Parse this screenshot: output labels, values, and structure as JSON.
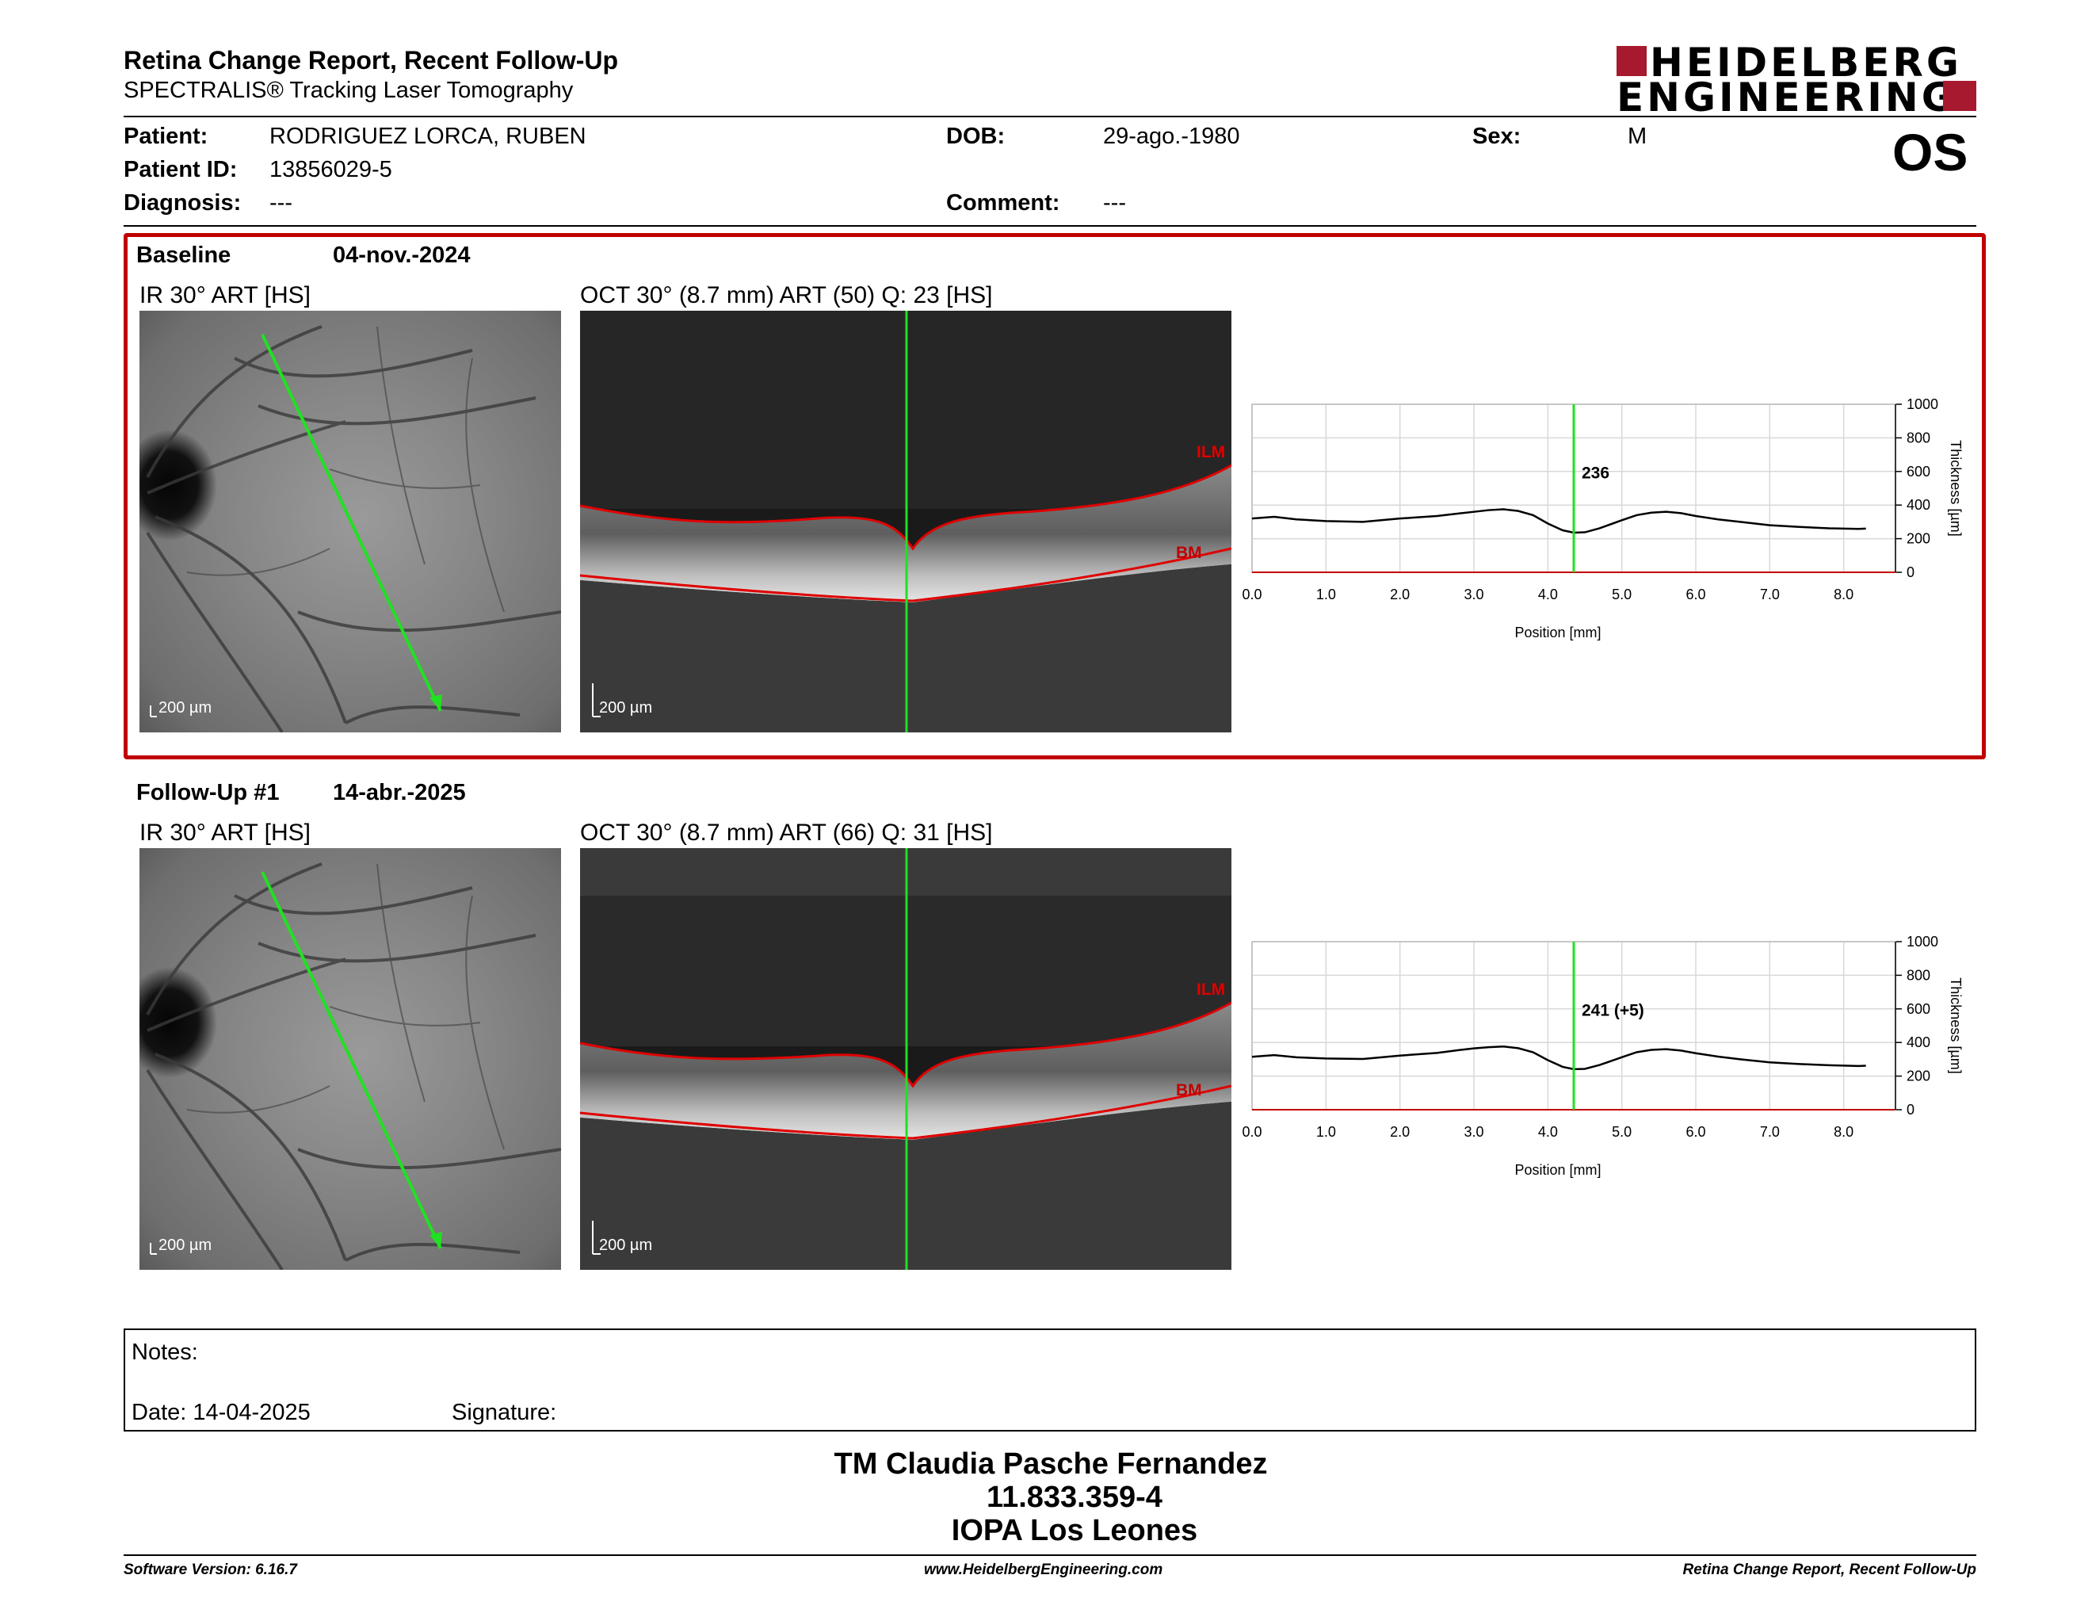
{
  "header": {
    "title": "Retina Change Report, Recent Follow-Up",
    "subtitle": "SPECTRALIS® Tracking Laser Tomography",
    "logo_line1": "HEIDELBERG",
    "logo_line2": "ENGINEERING",
    "brand_color": "#a6192e"
  },
  "patient": {
    "patient_label": "Patient:",
    "patient_value": "RODRIGUEZ LORCA, RUBEN",
    "id_label": "Patient ID:",
    "id_value": "13856029-5",
    "diagnosis_label": "Diagnosis:",
    "diagnosis_value": "---",
    "dob_label": "DOB:",
    "dob_value": "29-ago.-1980",
    "comment_label": "Comment:",
    "comment_value": "---",
    "sex_label": "Sex:",
    "sex_value": "M",
    "eye": "OS"
  },
  "baseline": {
    "label": "Baseline",
    "date": "04-nov.-2024",
    "ir_title": "IR 30° ART [HS]",
    "oct_title": "OCT 30° (8.7 mm) ART (50) Q: 23 [HS]",
    "ir_scale": "200 µm",
    "oct_scale": "200 µm",
    "ilm_label": "ILM",
    "bm_label": "BM"
  },
  "followup": {
    "label": "Follow-Up #1",
    "date": "14-abr.-2025",
    "ir_title": "IR 30° ART [HS]",
    "oct_title": "OCT 30° (8.7 mm) ART (66) Q: 31 [HS]",
    "ir_scale": "200 µm",
    "oct_scale": "200 µm",
    "ilm_label": "ILM",
    "bm_label": "BM"
  },
  "notes": {
    "notes_label": "Notes:",
    "date_label": "Date: 14-04-2025",
    "signature_label": "Signature:"
  },
  "signatory": {
    "name": "TM Claudia Pasche Fernandez",
    "id": "11.833.359-4",
    "org": "IOPA Los Leones"
  },
  "footer": {
    "left": "Software Version: 6.16.7",
    "center": "www.HeidelbergEngineering.com",
    "right": "Retina Change Report, Recent Follow-Up"
  },
  "chart_data": [
    {
      "type": "line",
      "xlabel": "Position [mm]",
      "ylabel": "Thickness [µm]",
      "xlim": [
        0,
        8.7
      ],
      "ylim": [
        0,
        1000
      ],
      "x_ticks": [
        "0.0",
        "1.0",
        "2.0",
        "3.0",
        "4.0",
        "5.0",
        "6.0",
        "7.0",
        "8.0"
      ],
      "y_ticks": [
        "0",
        "200",
        "400",
        "600",
        "800",
        "1000"
      ],
      "grid": true,
      "marker_x": 4.35,
      "marker_label": "236",
      "x": [
        0.0,
        0.3,
        0.6,
        1.0,
        1.5,
        2.0,
        2.5,
        2.8,
        3.0,
        3.2,
        3.4,
        3.6,
        3.8,
        4.0,
        4.2,
        4.35,
        4.5,
        4.7,
        5.0,
        5.2,
        5.4,
        5.6,
        5.8,
        6.0,
        6.3,
        6.6,
        7.0,
        7.4,
        7.8,
        8.2,
        8.3
      ],
      "y": [
        320,
        330,
        315,
        305,
        300,
        320,
        335,
        350,
        360,
        370,
        375,
        365,
        340,
        290,
        250,
        236,
        238,
        262,
        310,
        340,
        355,
        360,
        352,
        335,
        315,
        300,
        280,
        270,
        262,
        258,
        260
      ]
    },
    {
      "type": "line",
      "xlabel": "Position [mm]",
      "ylabel": "Thickness [µm]",
      "xlim": [
        0,
        8.7
      ],
      "ylim": [
        0,
        1000
      ],
      "x_ticks": [
        "0.0",
        "1.0",
        "2.0",
        "3.0",
        "4.0",
        "5.0",
        "6.0",
        "7.0",
        "8.0"
      ],
      "y_ticks": [
        "0",
        "200",
        "400",
        "600",
        "800",
        "1000"
      ],
      "grid": true,
      "marker_x": 4.35,
      "marker_label": "241 (+5)",
      "x": [
        0.0,
        0.3,
        0.6,
        1.0,
        1.5,
        2.0,
        2.5,
        2.8,
        3.0,
        3.2,
        3.4,
        3.6,
        3.8,
        4.0,
        4.2,
        4.35,
        4.5,
        4.7,
        5.0,
        5.2,
        5.4,
        5.6,
        5.8,
        6.0,
        6.3,
        6.6,
        7.0,
        7.4,
        7.8,
        8.2,
        8.3
      ],
      "y": [
        315,
        325,
        312,
        305,
        302,
        322,
        338,
        355,
        365,
        372,
        376,
        366,
        342,
        295,
        255,
        241,
        243,
        266,
        312,
        342,
        356,
        360,
        352,
        336,
        316,
        300,
        282,
        272,
        265,
        260,
        262
      ]
    }
  ]
}
